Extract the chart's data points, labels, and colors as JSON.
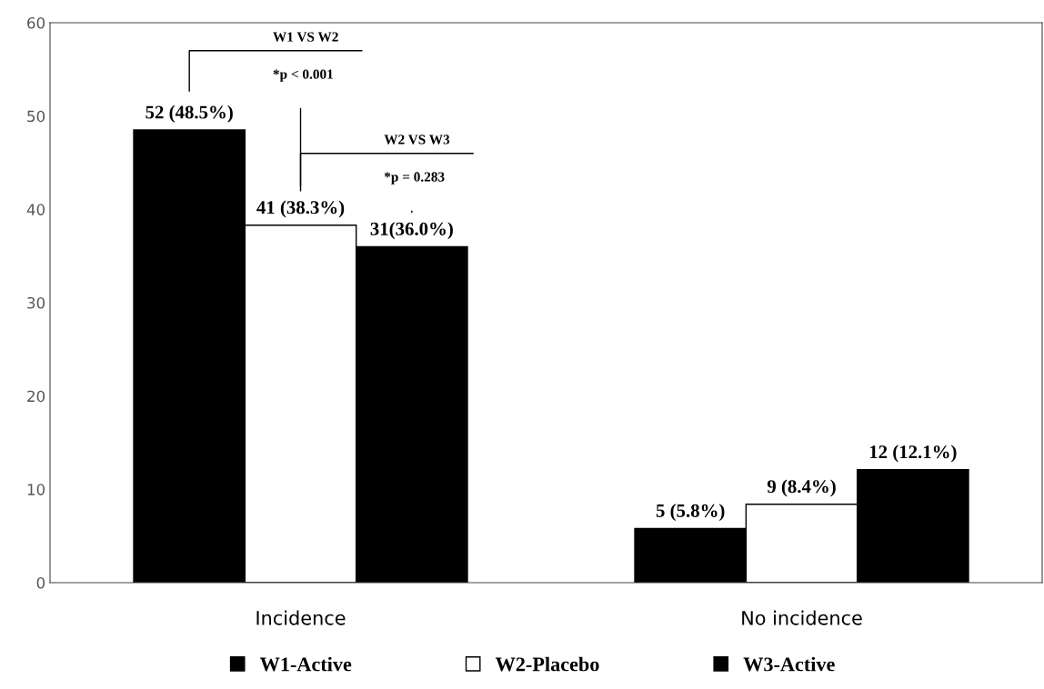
{
  "chart_data": {
    "type": "bar",
    "categories": [
      "Incidence",
      "No incidence"
    ],
    "series": [
      {
        "name": "W1-Active",
        "color": "#000000",
        "values": [
          48.5,
          5.8
        ],
        "value_labels": [
          "52 (48.5%)",
          "5 (5.8%)"
        ]
      },
      {
        "name": "W2-Placebo",
        "color": "#ffffff",
        "values": [
          38.3,
          8.4
        ],
        "value_labels": [
          "41 (38.3%)",
          "9 (8.4%)"
        ]
      },
      {
        "name": "W3-Active",
        "color": "#000000",
        "values": [
          36.0,
          12.1
        ],
        "value_labels": [
          "31(36.0%)",
          "12 (12.1%)"
        ]
      }
    ],
    "ylim": [
      0,
      60
    ],
    "yticks": [
      0,
      10,
      20,
      30,
      40,
      50,
      60
    ],
    "grid": false,
    "legend": "bottom",
    "annotations": [
      "W1 VS W2",
      "*p < 0.001",
      "W2 VS W3",
      "*p = 0.283"
    ]
  }
}
